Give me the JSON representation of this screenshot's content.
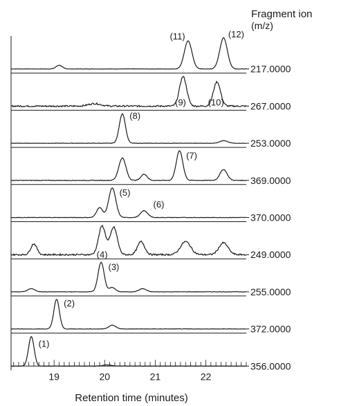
{
  "chart_data": {
    "type": "line",
    "header_line1": "Fragment ion",
    "header_line2": "(m/z)",
    "xlabel": "Retention time (minutes)",
    "xlim": [
      18.15,
      22.8
    ],
    "x_ticks": [
      "19",
      "20",
      "21",
      "22"
    ],
    "x_tick_values": [
      19,
      20,
      21,
      22
    ],
    "x_minor_step": 0.1,
    "grid": false,
    "traces": [
      {
        "name": "217.0000",
        "baseline_noise": 0.012,
        "peaks": [
          {
            "x": 19.1,
            "height": 0.12,
            "width": 0.06
          },
          {
            "x": 21.65,
            "height": 0.9,
            "width": 0.075,
            "label": "(11)",
            "label_x": 21.44,
            "label_y": 0.95
          },
          {
            "x": 22.35,
            "height": 1.0,
            "width": 0.075,
            "label": "(12)",
            "label_x": 22.6,
            "label_y": 1.02
          }
        ]
      },
      {
        "name": "267.0000",
        "baseline_noise": 0.05,
        "peaks": [
          {
            "x": 19.8,
            "height": 0.08,
            "width": 0.12
          },
          {
            "x": 21.55,
            "height": 0.95,
            "width": 0.07,
            "label": "(9)",
            "label_x": 21.5,
            "label_y": 0.02
          },
          {
            "x": 22.22,
            "height": 0.78,
            "width": 0.07,
            "label": "(10)",
            "label_x": 22.2,
            "label_y": 0.02
          }
        ]
      },
      {
        "name": "253.0000",
        "baseline_noise": 0.012,
        "peaks": [
          {
            "x": 20.35,
            "height": 0.95,
            "width": 0.06,
            "label": "(8)",
            "label_x": 20.6,
            "label_y": 0.78
          },
          {
            "x": 22.35,
            "height": 0.08,
            "width": 0.08
          }
        ]
      },
      {
        "name": "369.0000",
        "baseline_noise": 0.02,
        "peaks": [
          {
            "x": 20.35,
            "height": 0.72,
            "width": 0.07
          },
          {
            "x": 20.78,
            "height": 0.2,
            "width": 0.06
          },
          {
            "x": 21.48,
            "height": 0.95,
            "width": 0.065,
            "label": "(7)",
            "label_x": 21.72,
            "label_y": 0.7
          },
          {
            "x": 22.35,
            "height": 0.35,
            "width": 0.07
          }
        ]
      },
      {
        "name": "370.0000",
        "baseline_noise": 0.015,
        "peaks": [
          {
            "x": 19.9,
            "height": 0.32,
            "width": 0.06
          },
          {
            "x": 20.15,
            "height": 0.95,
            "width": 0.07,
            "label": "(5)",
            "label_x": 20.4,
            "label_y": 0.7
          },
          {
            "x": 20.78,
            "height": 0.22,
            "width": 0.07,
            "label": "(6)",
            "label_x": 21.07,
            "label_y": 0.32
          }
        ]
      },
      {
        "name": "249.0000",
        "baseline_noise": 0.05,
        "peaks": [
          {
            "x": 18.6,
            "height": 0.35,
            "width": 0.06
          },
          {
            "x": 19.95,
            "height": 0.92,
            "width": 0.07,
            "label": "(4)",
            "label_x": 19.95,
            "label_y": -0.1
          },
          {
            "x": 20.18,
            "height": 0.88,
            "width": 0.07
          },
          {
            "x": 20.72,
            "height": 0.42,
            "width": 0.07
          },
          {
            "x": 21.6,
            "height": 0.42,
            "width": 0.1
          },
          {
            "x": 22.35,
            "height": 0.38,
            "width": 0.09
          }
        ]
      },
      {
        "name": "255.0000",
        "baseline_noise": 0.012,
        "peaks": [
          {
            "x": 18.55,
            "height": 0.1,
            "width": 0.07
          },
          {
            "x": 19.93,
            "height": 0.95,
            "width": 0.06,
            "label": "(3)",
            "label_x": 20.18,
            "label_y": 0.7
          },
          {
            "x": 20.15,
            "height": 0.14,
            "width": 0.06
          },
          {
            "x": 20.75,
            "height": 0.1,
            "width": 0.07
          }
        ]
      },
      {
        "name": "372.0000",
        "baseline_noise": 0.012,
        "peaks": [
          {
            "x": 19.05,
            "height": 0.95,
            "width": 0.055,
            "label": "(2)",
            "label_x": 19.3,
            "label_y": 0.72
          },
          {
            "x": 20.15,
            "height": 0.12,
            "width": 0.07
          }
        ]
      },
      {
        "name": "356.0000",
        "baseline_noise": 0.012,
        "peaks": [
          {
            "x": 18.55,
            "height": 0.95,
            "width": 0.055,
            "label": "(1)",
            "label_x": 18.8,
            "label_y": 0.62
          },
          {
            "x": 20.05,
            "height": 0.04,
            "width": 0.08
          }
        ]
      }
    ]
  }
}
